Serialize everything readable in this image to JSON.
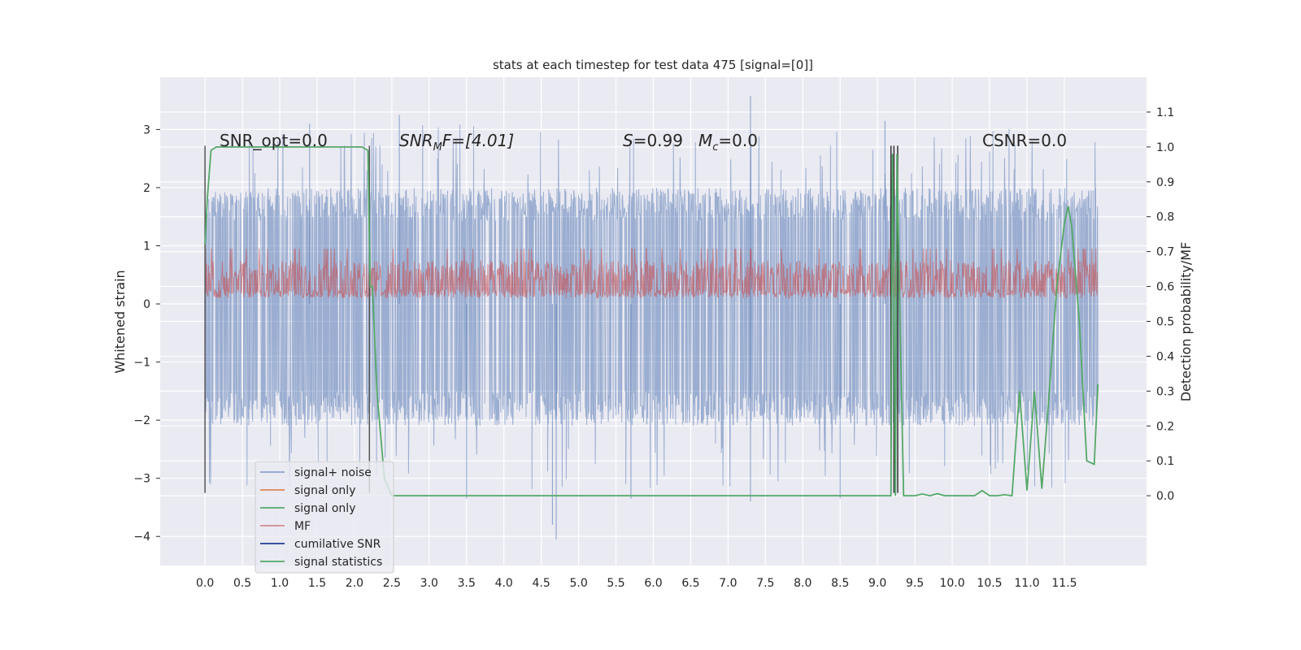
{
  "chart_data": {
    "type": "line",
    "title": "stats at each timestep for test data 475 [signal=[0]]",
    "xlabel": "",
    "ylabel": "Whitened strain",
    "ylabel_right": "Detection probability/MF",
    "xlim": [
      -0.6,
      12.6
    ],
    "ylim": [
      -4.5,
      3.9
    ],
    "ylim_right": [
      -0.2,
      1.2
    ],
    "xticks": [
      0.0,
      0.5,
      1.0,
      1.5,
      2.0,
      2.5,
      3.0,
      3.5,
      4.0,
      4.5,
      5.0,
      5.5,
      6.0,
      6.5,
      7.0,
      7.5,
      8.0,
      8.5,
      9.0,
      9.5,
      10.0,
      10.5,
      11.0,
      11.5
    ],
    "xtick_labels": [
      "0.0",
      "0.5",
      "1.0",
      "1.5",
      "2.0",
      "2.5",
      "3.0",
      "3.5",
      "4.0",
      "4.5",
      "5.0",
      "5.5",
      "6.0",
      "6.5",
      "7.0",
      "7.5",
      "8.0",
      "8.5",
      "9.0",
      "9.5",
      "10.0",
      "10.5",
      "11.0",
      "11.5"
    ],
    "yticks": [
      -4,
      -3,
      -2,
      -1,
      0,
      1,
      2,
      3
    ],
    "ytick_labels": [
      "−4",
      "−3",
      "−2",
      "−1",
      "0",
      "1",
      "2",
      "3"
    ],
    "yticks_right": [
      0.0,
      0.1,
      0.2,
      0.3,
      0.4,
      0.5,
      0.6,
      0.7,
      0.8,
      0.9,
      1.0,
      1.1
    ],
    "ytick_right_labels": [
      "0.0",
      "0.1",
      "0.2",
      "0.3",
      "0.4",
      "0.5",
      "0.6",
      "0.7",
      "0.8",
      "0.9",
      "1.0",
      "1.1"
    ],
    "grid": true,
    "legend_position": "lower-left",
    "annotations": {
      "snr_opt": "SNR_opt=0.0",
      "snr_mf_sym": "SNR",
      "snr_mf_sub": "M",
      "snr_mf_rest": "F=[4.01]",
      "s_sym": "S",
      "s_val": "=0.99",
      "mc_sym": "M",
      "mc_sub": "c",
      "mc_val": "=0.0",
      "csnr": "CSNR=0.0"
    },
    "series": [
      {
        "name": "signal+ noise",
        "color": "#4c72b0",
        "axis": "left",
        "envelope": {
          "x_range": [
            0.0,
            11.95
          ],
          "low": -2.0,
          "high": 1.9,
          "max_spike": 3.58,
          "min_spike": -4.05
        }
      },
      {
        "name": "signal only",
        "color": "#dd8452",
        "axis": "left",
        "values": []
      },
      {
        "name": "signal only",
        "color": "#55a868",
        "axis": "left",
        "values": []
      },
      {
        "name": "MF",
        "color": "#c44e52",
        "axis": "left",
        "envelope": {
          "x_range": [
            0.0,
            11.95
          ],
          "low": 0.1,
          "high": 0.95
        }
      },
      {
        "name": "cumilative SNR",
        "color": "#1f3f8f",
        "axis": "right",
        "values": []
      },
      {
        "name": "signal statistics",
        "color": "#55a868",
        "axis": "right",
        "x": [
          0.0,
          0.03,
          0.08,
          0.15,
          0.5,
          1.0,
          1.5,
          2.0,
          2.1,
          2.18,
          2.21,
          2.24,
          2.3,
          2.4,
          2.5,
          2.6,
          3.0,
          4.0,
          5.0,
          6.0,
          7.0,
          8.0,
          9.0,
          9.18,
          9.2,
          9.22,
          9.24,
          9.26,
          9.3,
          9.35,
          9.4,
          9.5,
          9.6,
          9.7,
          9.8,
          9.9,
          10.0,
          10.3,
          10.4,
          10.5,
          10.6,
          10.7,
          10.8,
          10.9,
          11.0,
          11.1,
          11.2,
          11.3,
          11.4,
          11.5,
          11.55,
          11.6,
          11.7,
          11.8,
          11.9,
          11.95
        ],
        "values": [
          0.72,
          0.85,
          0.99,
          1.0,
          1.0,
          1.0,
          1.0,
          1.0,
          1.0,
          0.99,
          0.6,
          0.6,
          0.3,
          0.05,
          0.0,
          0.0,
          0.0,
          0.0,
          0.0,
          0.0,
          0.0,
          0.0,
          0.0,
          0.0,
          0.98,
          0.6,
          0.0,
          0.98,
          0.5,
          0.0,
          0.0,
          0.0,
          0.005,
          0.0,
          0.006,
          0.0,
          0.0,
          0.0,
          0.015,
          0.0,
          0.0,
          0.003,
          0.0,
          0.3,
          0.015,
          0.3,
          0.02,
          0.3,
          0.6,
          0.78,
          0.83,
          0.77,
          0.5,
          0.1,
          0.09,
          0.32
        ]
      }
    ],
    "vertical_markers": [
      {
        "x": 0.0,
        "color": "#555555",
        "ymin": -3.25,
        "ymax": 2.72
      },
      {
        "x": 2.2,
        "color": "#555555",
        "ymin": -3.25,
        "ymax": 2.72
      },
      {
        "x": 9.18,
        "color": "#333333",
        "ymin": -3.25,
        "ymax": 2.72
      },
      {
        "x": 9.22,
        "color": "#333333",
        "ymin": -3.25,
        "ymax": 2.72
      },
      {
        "x": 9.27,
        "color": "#333333",
        "ymin": -3.25,
        "ymax": 2.72
      }
    ]
  }
}
